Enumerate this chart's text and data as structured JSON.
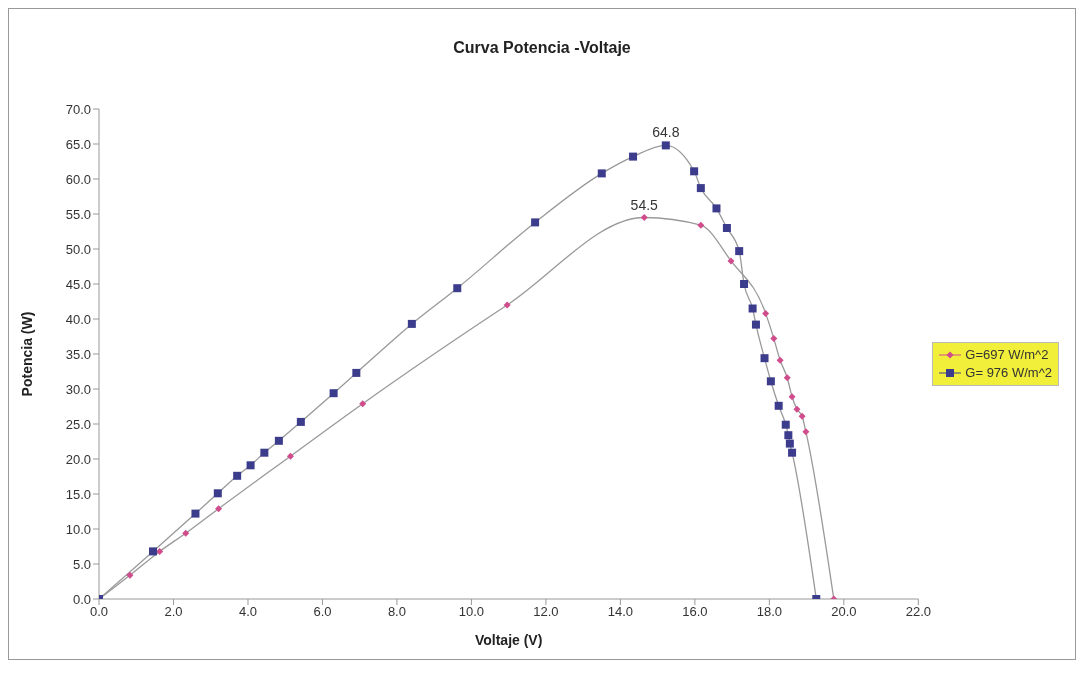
{
  "chart_data": {
    "type": "line",
    "title": "Curva Potencia -Voltaje",
    "xlabel": "Voltaje (V)",
    "ylabel": "Potencia (W)",
    "series": [
      {
        "name": "G=697 W/m^2",
        "color": "#d04c8c",
        "marker": "diamond",
        "x": [
          0,
          0.83,
          1.63,
          2.33,
          3.21,
          5.14,
          7.08,
          10.96,
          14.64,
          16.16,
          16.97,
          17.9,
          18.12,
          18.29,
          18.48,
          18.61,
          18.74,
          18.88,
          18.98,
          19.73
        ],
        "values": [
          0,
          3.4,
          6.8,
          9.4,
          12.9,
          20.4,
          27.9,
          42.0,
          54.5,
          53.4,
          48.3,
          40.8,
          37.2,
          34.1,
          31.6,
          28.9,
          27.1,
          26.1,
          23.9,
          0
        ]
      },
      {
        "name": "G= 976 W/m^2",
        "color": "#3c3c8c",
        "marker": "square",
        "x": [
          0,
          1.45,
          2.59,
          3.19,
          3.71,
          4.07,
          4.44,
          4.83,
          5.42,
          6.3,
          6.91,
          8.4,
          9.62,
          11.71,
          13.5,
          14.34,
          15.22,
          15.98,
          16.16,
          16.58,
          16.86,
          17.19,
          17.32,
          17.55,
          17.64,
          17.87,
          18.04,
          18.25,
          18.44,
          18.51,
          18.55,
          18.61,
          19.26
        ],
        "values": [
          0,
          6.8,
          12.2,
          15.1,
          17.6,
          19.1,
          20.9,
          22.6,
          25.3,
          29.4,
          32.3,
          39.3,
          44.4,
          53.8,
          60.8,
          63.2,
          64.8,
          61.1,
          58.7,
          55.8,
          53.0,
          49.7,
          45.0,
          41.5,
          39.2,
          34.4,
          31.1,
          27.6,
          24.9,
          23.4,
          22.2,
          20.9,
          0
        ]
      }
    ],
    "annotations": [
      {
        "text": "54.5",
        "x": 14.64,
        "y": 54.5
      },
      {
        "text": "64.8",
        "x": 15.22,
        "y": 64.8
      }
    ],
    "xlim": [
      0,
      22
    ],
    "xticks": [
      {
        "value": 0,
        "label": "0.0"
      },
      {
        "value": 2,
        "label": "2.0"
      },
      {
        "value": 4,
        "label": "4.0"
      },
      {
        "value": 6,
        "label": "6.0"
      },
      {
        "value": 8,
        "label": "8.0"
      },
      {
        "value": 10,
        "label": "10.0"
      },
      {
        "value": 12,
        "label": "12.0"
      },
      {
        "value": 14,
        "label": "14.0"
      },
      {
        "value": 16,
        "label": "16.0"
      },
      {
        "value": 18,
        "label": "18.0"
      },
      {
        "value": 20,
        "label": "20.0"
      },
      {
        "value": 22,
        "label": "22.0"
      }
    ],
    "ylim": [
      0,
      70
    ],
    "yticks": [
      {
        "value": 0,
        "label": "0.0"
      },
      {
        "value": 5,
        "label": "5.0"
      },
      {
        "value": 10,
        "label": "10.0"
      },
      {
        "value": 15,
        "label": "15.0"
      },
      {
        "value": 20,
        "label": "20.0"
      },
      {
        "value": 25,
        "label": "25.0"
      },
      {
        "value": 30,
        "label": "30.0"
      },
      {
        "value": 35,
        "label": "35.0"
      },
      {
        "value": 40,
        "label": "40.0"
      },
      {
        "value": 45,
        "label": "45.0"
      },
      {
        "value": 50,
        "label": "50.0"
      },
      {
        "value": 55,
        "label": "55.0"
      },
      {
        "value": 60,
        "label": "60.0"
      },
      {
        "value": 65,
        "label": "65.0"
      },
      {
        "value": 70,
        "label": "70.0"
      }
    ],
    "grid": false,
    "legend": "right",
    "line_style": "solid"
  }
}
